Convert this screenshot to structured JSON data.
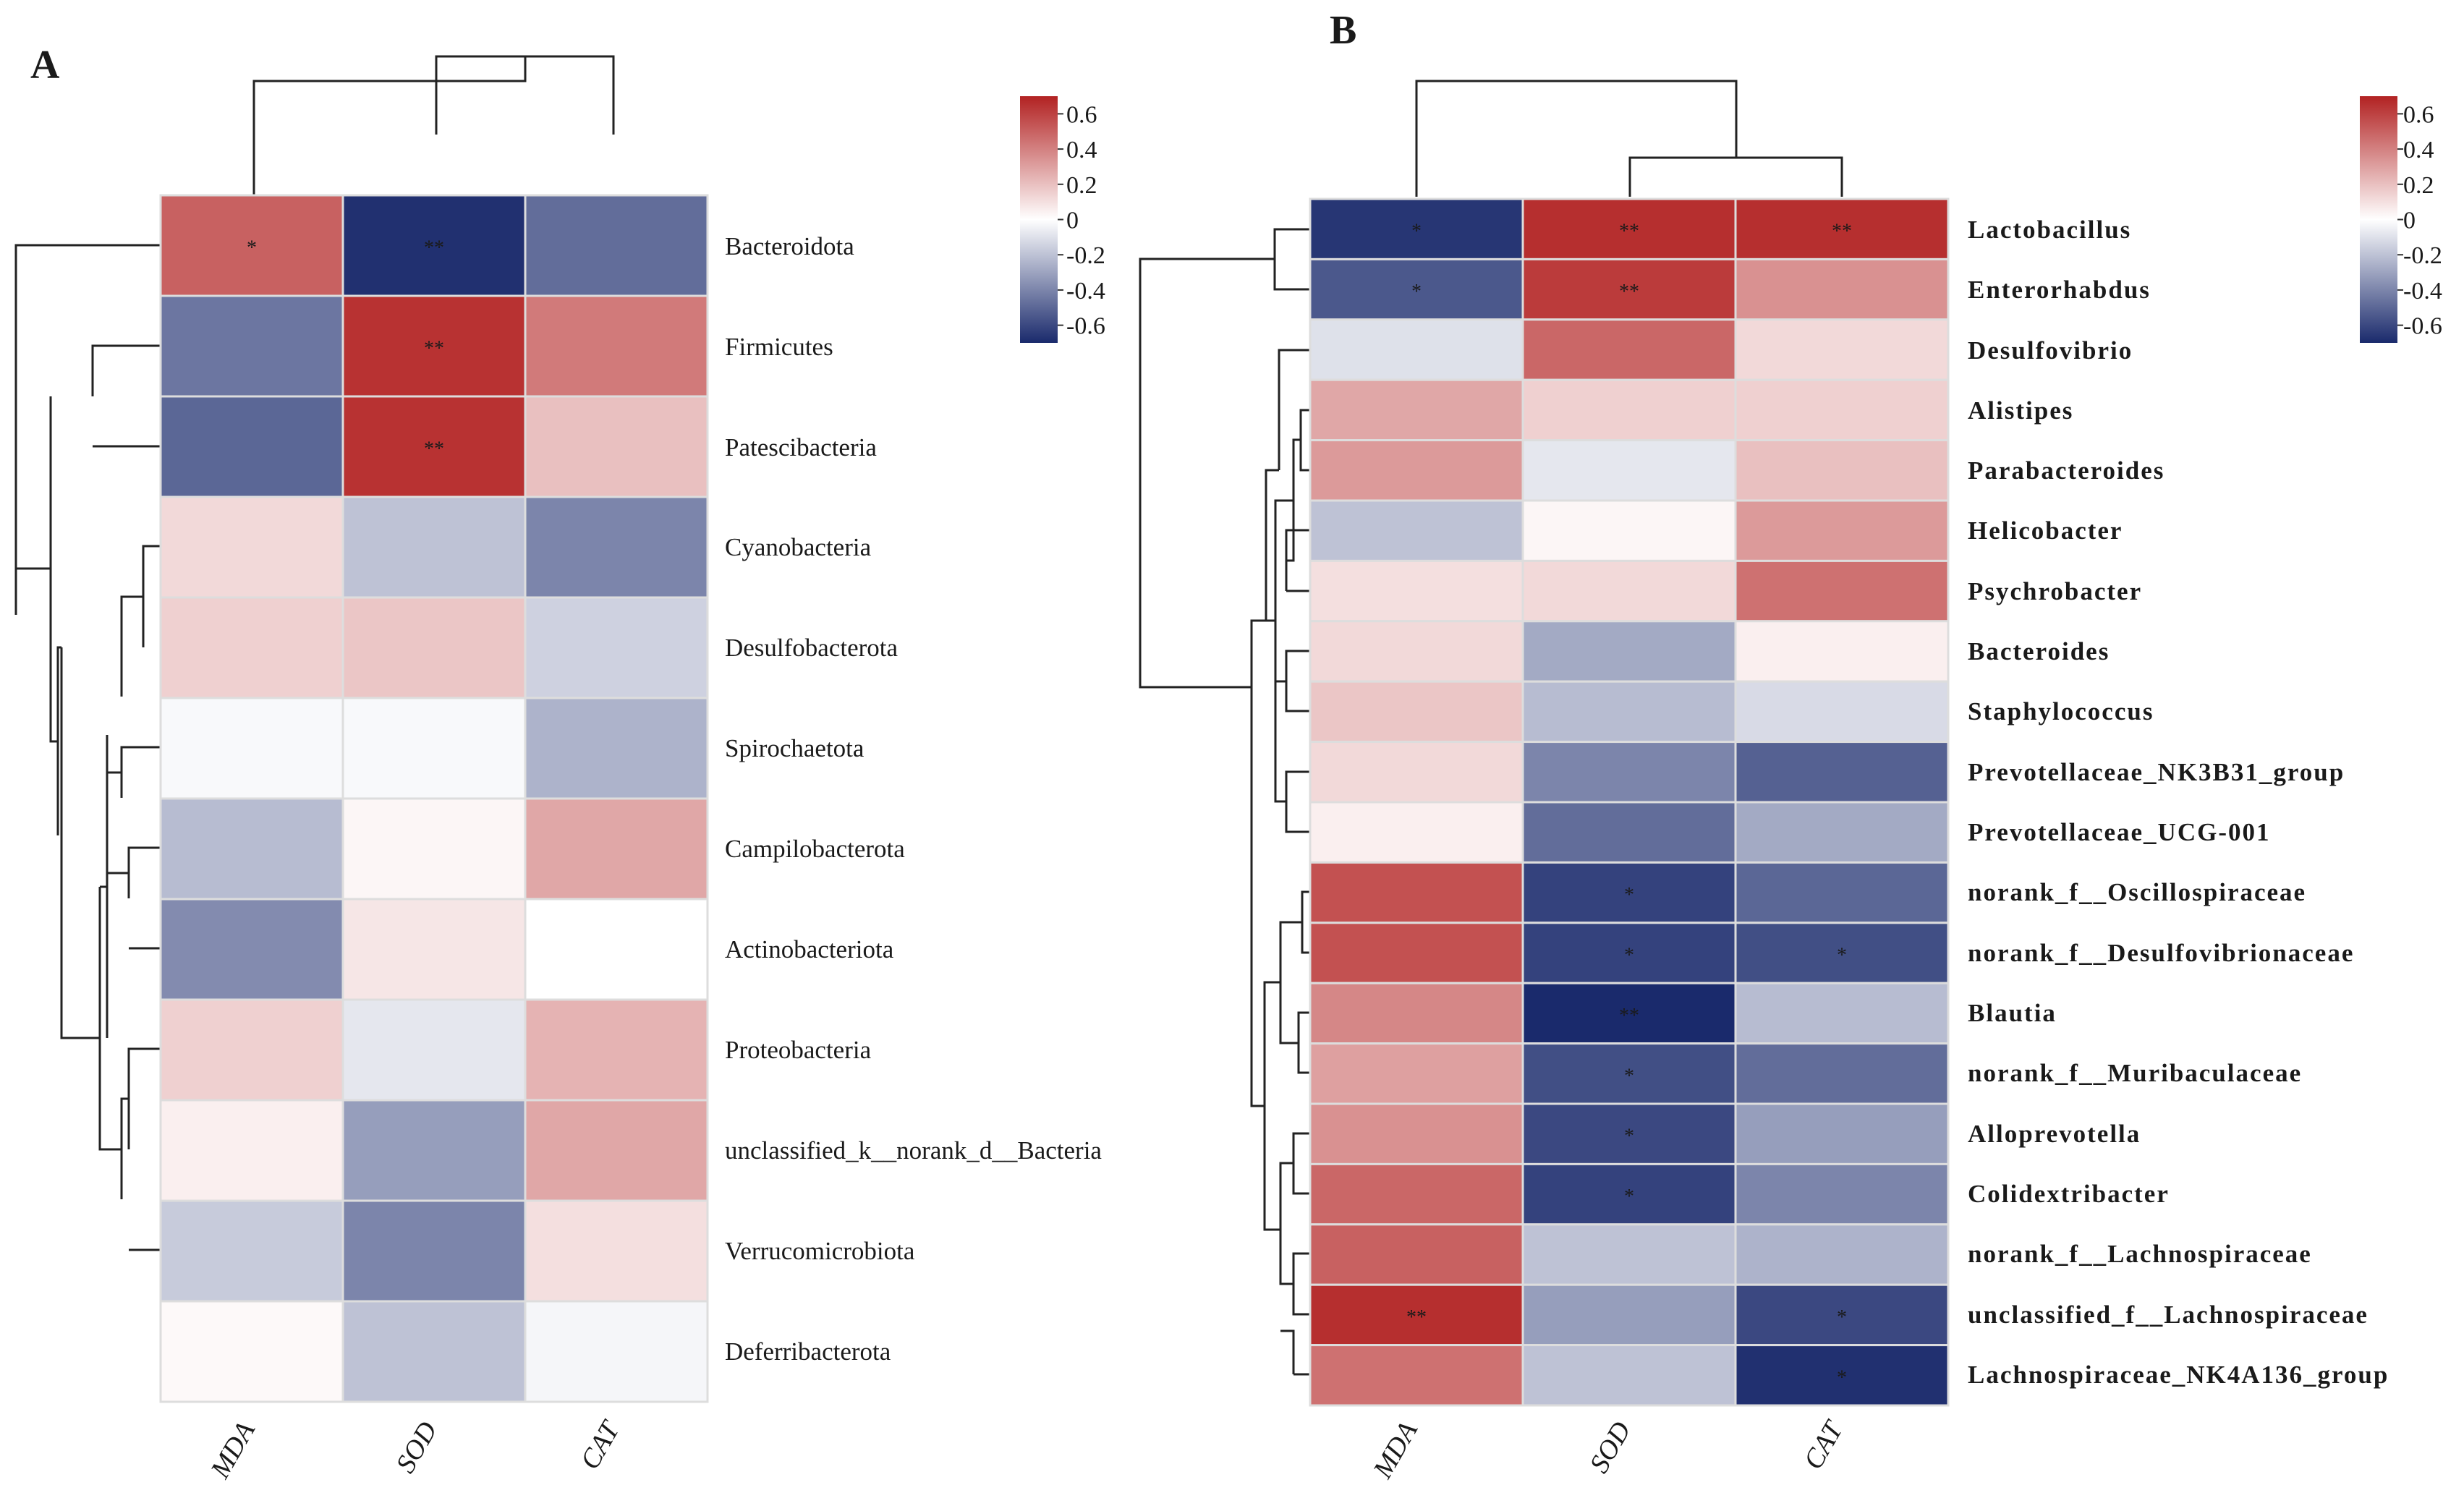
{
  "figure": {
    "panel_a_label": "A",
    "panel_b_label": "B"
  },
  "colors": {
    "negative": "#1a2a6c",
    "zero": "#ffffff",
    "positive": "#b22222",
    "grid": "#dddddd"
  },
  "chart_data": [
    {
      "type": "heatmap",
      "panel": "A",
      "title": "",
      "columns": [
        "MDA",
        "SOD",
        "CAT"
      ],
      "rows": [
        "Bacteroidota",
        "Firmicutes",
        "Patescibacteria",
        "Cyanobacteria",
        "Desulfobacterota",
        "Spirochaetota",
        "Campilobacterota",
        "Actinobacteriota",
        "Proteobacteria",
        "unclassified_k__norank_d__Bacteria",
        "Verrucomicrobiota",
        "Deferribacterota"
      ],
      "values": [
        [
          0.5,
          -0.68,
          -0.48
        ],
        [
          -0.45,
          0.65,
          0.42
        ],
        [
          -0.5,
          0.65,
          0.2
        ],
        [
          0.12,
          -0.2,
          -0.4
        ],
        [
          0.15,
          0.18,
          -0.15
        ],
        [
          -0.02,
          -0.02,
          -0.25
        ],
        [
          -0.22,
          0.03,
          0.28
        ],
        [
          -0.38,
          0.08,
          0.0
        ],
        [
          0.15,
          -0.08,
          0.24
        ],
        [
          0.05,
          -0.32,
          0.28
        ],
        [
          -0.17,
          -0.4,
          0.1
        ],
        [
          0.02,
          -0.2,
          -0.03
        ]
      ],
      "significance": [
        [
          "*",
          "**",
          ""
        ],
        [
          "",
          "**",
          ""
        ],
        [
          "",
          "**",
          ""
        ],
        [
          "",
          "",
          ""
        ],
        [
          "",
          "",
          ""
        ],
        [
          "",
          "",
          ""
        ],
        [
          "",
          "",
          ""
        ],
        [
          "",
          "",
          ""
        ],
        [
          "",
          "",
          ""
        ],
        [
          "",
          "",
          ""
        ],
        [
          "",
          "",
          ""
        ],
        [
          "",
          "",
          ""
        ]
      ],
      "colorbar": {
        "range": [
          -0.7,
          0.7
        ],
        "ticks": [
          0.6,
          0.4,
          0.2,
          0,
          -0.2,
          -0.4,
          -0.6
        ],
        "tick_labels": [
          "0.6",
          "0.4",
          "0.2",
          "0",
          "-0.2",
          "-0.4",
          "-0.6"
        ]
      }
    },
    {
      "type": "heatmap",
      "panel": "B",
      "title": "",
      "columns": [
        "MDA",
        "SOD",
        "CAT"
      ],
      "rows": [
        "Lactobacillus",
        "Enterorhabdus",
        "Desulfovibrio",
        "Alistipes",
        "Parabacteroides",
        "Helicobacter",
        "Psychrobacter",
        "Bacteroides",
        "Staphylococcus",
        "Prevotellaceae_NK3B31_group",
        "Prevotellaceae_UCG-001",
        "norank_f__Oscillospiraceae",
        "norank_f__Desulfovibrionaceae",
        "Blautia",
        "norank_f__Muribaculaceae",
        "Alloprevotella",
        "Colidextribacter",
        "norank_f__Lachnospiraceae",
        "unclassified_f__Lachnospiraceae",
        "Lachnospiraceae_NK4A136_group"
      ],
      "values": [
        [
          -0.66,
          0.66,
          0.66
        ],
        [
          -0.55,
          0.62,
          0.35
        ],
        [
          -0.1,
          0.48,
          0.12
        ],
        [
          0.28,
          0.15,
          0.15
        ],
        [
          0.32,
          -0.08,
          0.2
        ],
        [
          -0.2,
          0.03,
          0.32
        ],
        [
          0.1,
          0.12,
          0.45
        ],
        [
          0.12,
          -0.28,
          0.05
        ],
        [
          0.18,
          -0.22,
          -0.12
        ],
        [
          0.12,
          -0.4,
          -0.52
        ],
        [
          0.05,
          -0.48,
          -0.28
        ],
        [
          0.55,
          -0.62,
          -0.5
        ],
        [
          0.55,
          -0.62,
          -0.58
        ],
        [
          0.38,
          -0.72,
          -0.22
        ],
        [
          0.3,
          -0.58,
          -0.48
        ],
        [
          0.35,
          -0.6,
          -0.32
        ],
        [
          0.48,
          -0.62,
          -0.4
        ],
        [
          0.5,
          -0.2,
          -0.25
        ],
        [
          0.66,
          -0.32,
          -0.6
        ],
        [
          0.45,
          -0.2,
          -0.68
        ]
      ],
      "significance": [
        [
          "*",
          "**",
          "**"
        ],
        [
          "*",
          "**",
          ""
        ],
        [
          "",
          "",
          ""
        ],
        [
          "",
          "",
          ""
        ],
        [
          "",
          "",
          ""
        ],
        [
          "",
          "",
          ""
        ],
        [
          "",
          "",
          ""
        ],
        [
          "",
          "",
          ""
        ],
        [
          "",
          "",
          ""
        ],
        [
          "",
          "",
          ""
        ],
        [
          "",
          "",
          ""
        ],
        [
          "",
          "*",
          ""
        ],
        [
          "",
          "*",
          "*"
        ],
        [
          "",
          "**",
          ""
        ],
        [
          "",
          "*",
          ""
        ],
        [
          "",
          "*",
          ""
        ],
        [
          "",
          "*",
          ""
        ],
        [
          "",
          "",
          ""
        ],
        [
          "**",
          "",
          "*"
        ],
        [
          "",
          "",
          "*"
        ]
      ],
      "colorbar": {
        "range": [
          -0.7,
          0.7
        ],
        "ticks": [
          0.6,
          0.4,
          0.2,
          0,
          -0.2,
          -0.4,
          -0.6
        ],
        "tick_labels": [
          "0.6",
          "0.4",
          "0.2",
          "0",
          "-0.2",
          "-0.4",
          "-0.6"
        ]
      }
    }
  ]
}
